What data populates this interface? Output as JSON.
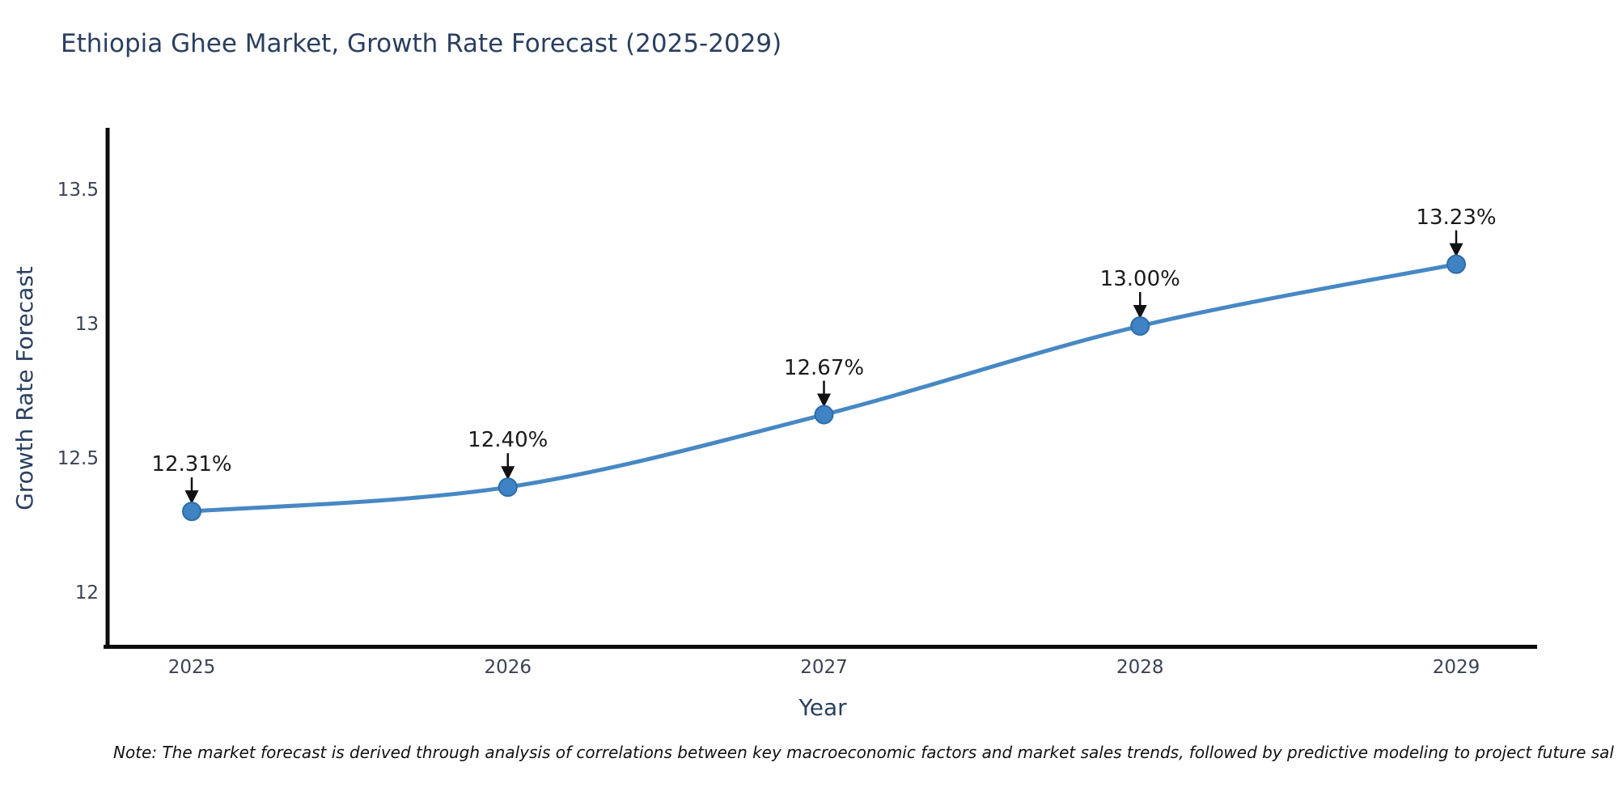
{
  "title": "Ethiopia Ghee Market, Growth Rate Forecast (2025-2029)",
  "note": "Note: The market forecast is derived through analysis of correlations between key macroeconomic factors and market sales trends, followed by predictive modeling to project future sal",
  "chart_data": {
    "type": "line",
    "title": "Ethiopia Ghee Market, Growth Rate Forecast (2025-2029)",
    "xlabel": "Year",
    "ylabel": "Growth Rate Forecast",
    "x": [
      2025,
      2026,
      2027,
      2028,
      2029
    ],
    "series": [
      {
        "name": "Growth Rate Forecast",
        "values": [
          12.31,
          12.4,
          12.67,
          13.0,
          13.23
        ],
        "point_labels": [
          "12.31%",
          "12.40%",
          "12.67%",
          "13.00%",
          "13.23%"
        ]
      }
    ],
    "x_tick_labels": [
      "2025",
      "2026",
      "2027",
      "2028",
      "2029"
    ],
    "y_ticks": [
      12,
      12.5,
      13,
      13.5
    ],
    "y_tick_labels": [
      "12",
      "12.5",
      "13",
      "13.5"
    ],
    "ylim": [
      11.8,
      13.73
    ],
    "grid": false,
    "legend": "none",
    "line_shape": "spline",
    "colors": {
      "line": "#4788c4",
      "marker_fill": "#3f83c4",
      "marker_edge": "#2d6ca8",
      "arrow": "#111111",
      "axis_spine": "#0d0d0d",
      "axis_title": "#2a3f5f",
      "tick_label": "#3b4254",
      "annotation_text": "#1a1a1a"
    }
  }
}
